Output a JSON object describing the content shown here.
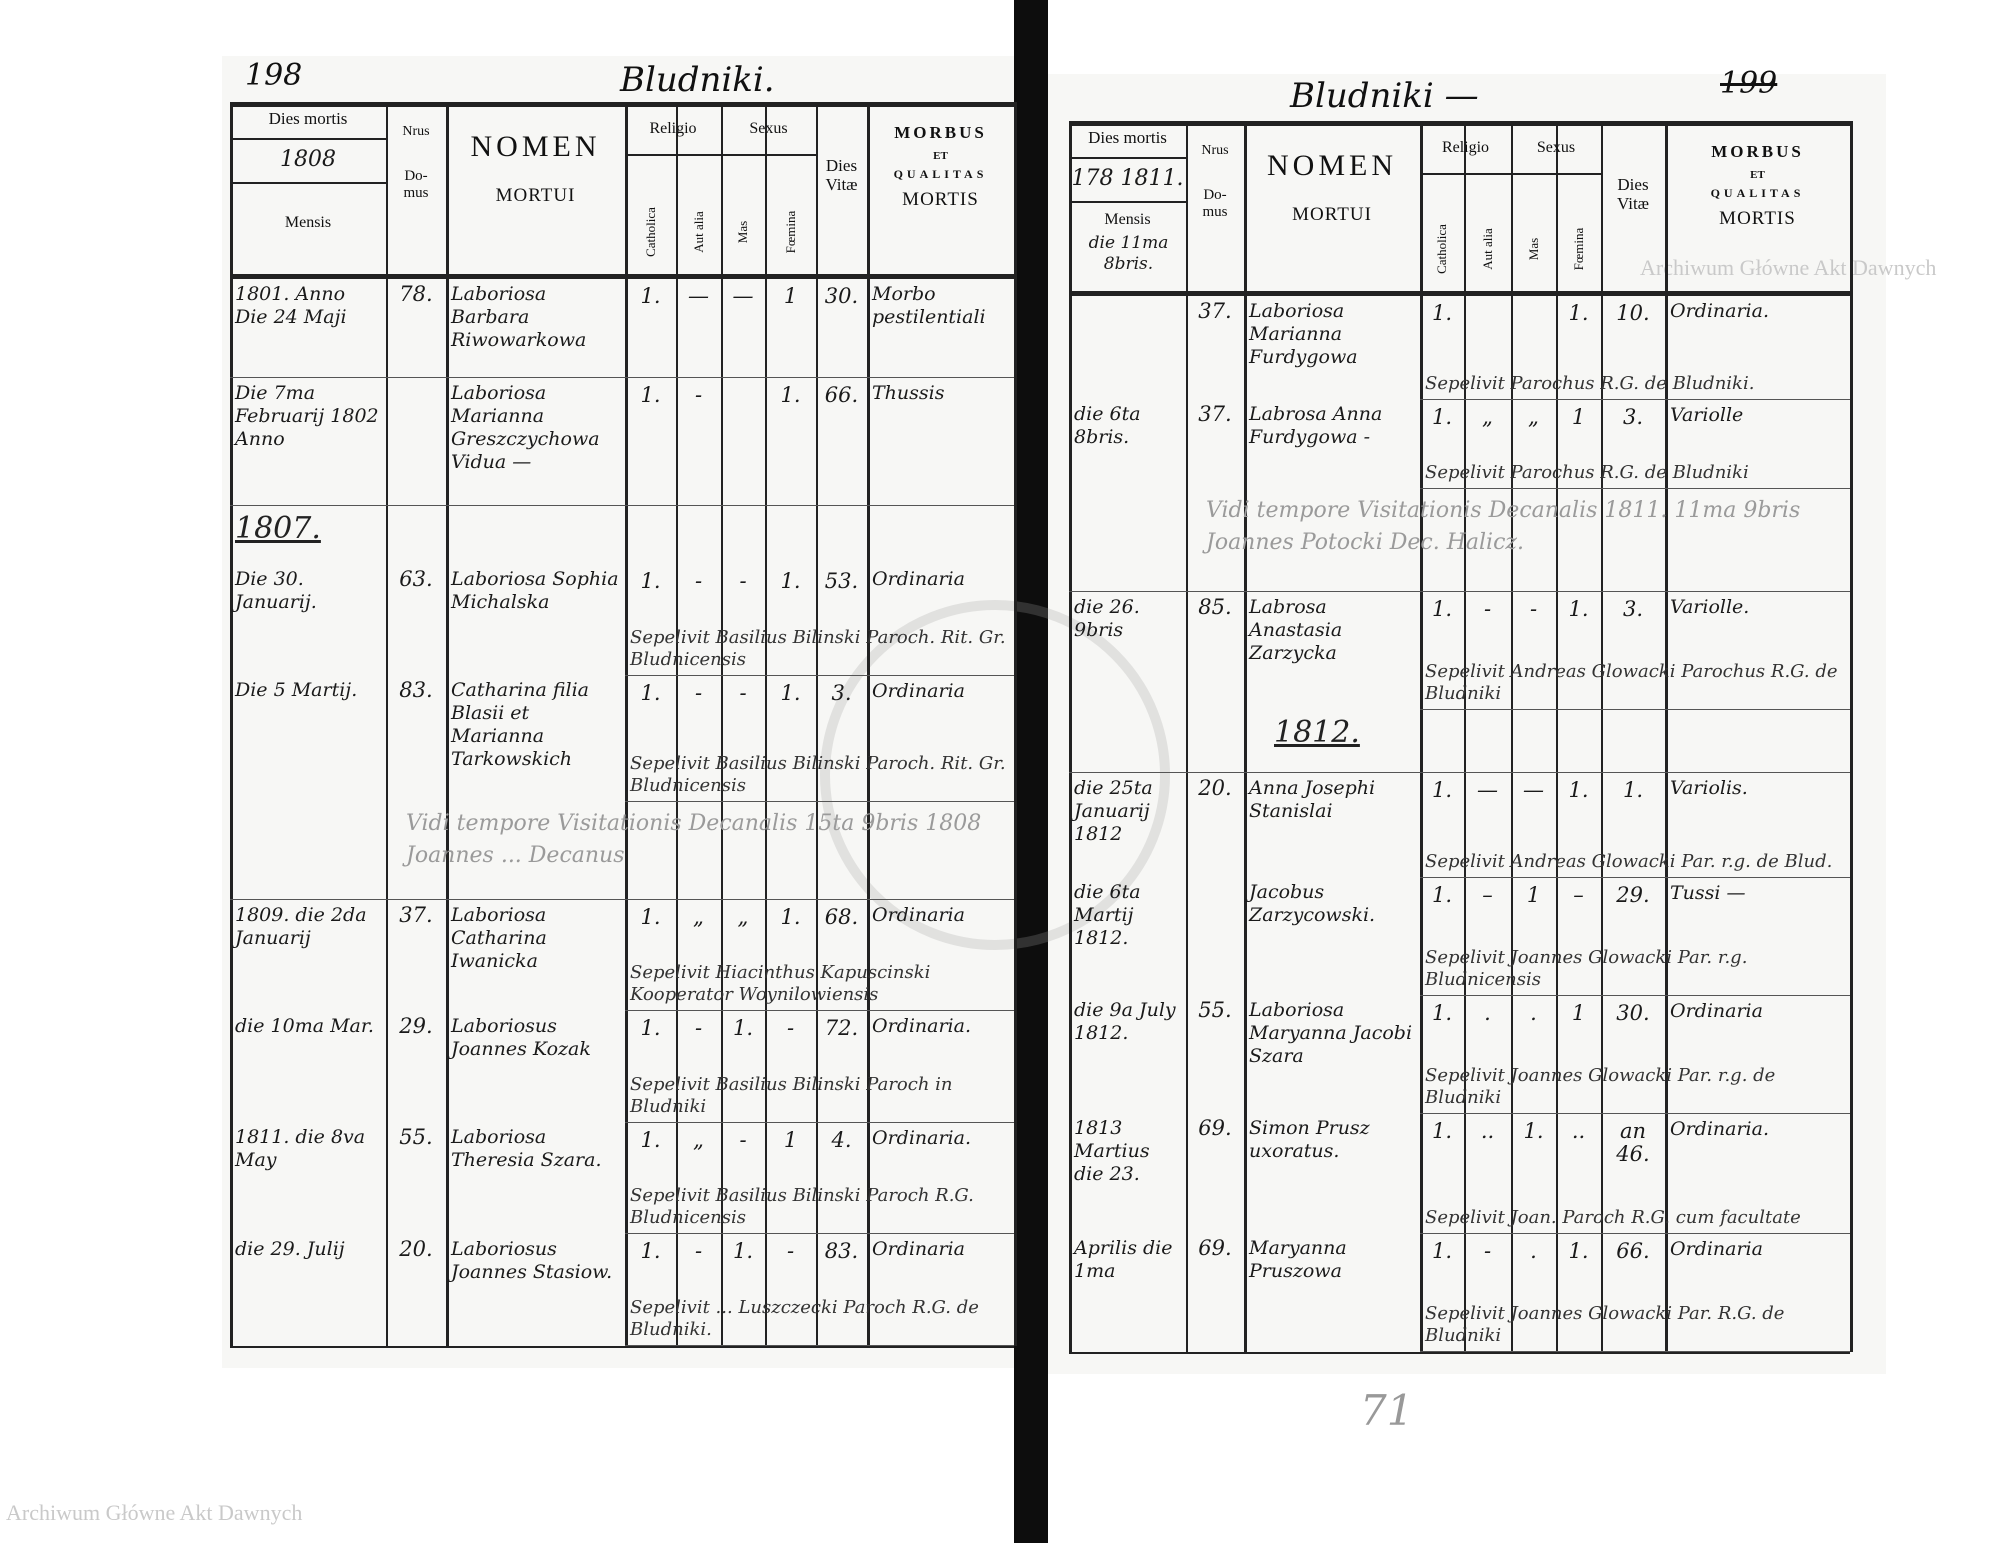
{
  "header": {
    "dies_mortis": "Dies mortis",
    "mensis": "Mensis",
    "nrus": "Nrus",
    "domus": "Do-\nmus",
    "nomen": "NOMEN",
    "mortui": "MORTUI",
    "religio": "Religio",
    "sexus": "Sexus",
    "catholica": "Catholica",
    "aut_alia": "Aut alia",
    "mas": "Mas",
    "femina": "Fœmina",
    "dies_vitae": "Dies\nVitæ",
    "morbus": "MORBUS",
    "et": "ET",
    "qualitas": "QUALITAS",
    "mortis": "MORTIS"
  },
  "left_page": {
    "page_number": "198",
    "place": "Bludniki.",
    "year": "1808",
    "rows": [
      {
        "date": "1801. Anno Die 24 Maji",
        "domus": "78.",
        "nomen": "Laboriosa Barbara Riwowarkowa",
        "catholica": "1.",
        "aut_alia": "—",
        "mas": "—",
        "femina": "1",
        "dies_vitae": "30.",
        "morbus": "Morbo pestilentiali"
      },
      {
        "date": "Die 7ma Februarij 1802 Anno",
        "domus": "",
        "nomen": "Laboriosa Marianna Greszczychowa Vidua —",
        "catholica": "1.",
        "aut_alia": "-",
        "mas": "",
        "femina": "1.",
        "dies_vitae": "66.",
        "morbus": "Thussis"
      },
      {
        "section": "1807.",
        "date": "Die 30. Januarij.",
        "domus": "63.",
        "nomen": "Laboriosa Sophia Michalska",
        "catholica": "1.",
        "aut_alia": "-",
        "mas": "-",
        "femina": "1.",
        "dies_vitae": "53.",
        "morbus": "Ordinaria",
        "note": "Sepelivit Basilius Bilinski Paroch. Rit. Gr. Bludnicensis"
      },
      {
        "date": "Die 5 Martij.",
        "domus": "83.",
        "nomen": "Catharina filia Blasii et Marianna Tarkowskich",
        "catholica": "1.",
        "aut_alia": "-",
        "mas": "-",
        "femina": "1.",
        "dies_vitae": "3.",
        "morbus": "Ordinaria",
        "note": "Sepelivit Basilius Bilinski Paroch. Rit. Gr. Bludnicensis"
      },
      {
        "visitation": "Vidi tempore Visitationis Decanalis 15ta 9bris 1808 Joannes ... Decanus"
      },
      {
        "date": "1809. die 2da Januarij",
        "domus": "37.",
        "nomen": "Laboriosa Catharina Iwanicka",
        "catholica": "1.",
        "aut_alia": "„",
        "mas": "„",
        "femina": "1.",
        "dies_vitae": "68.",
        "morbus": "Ordinaria",
        "note": "Sepelivit Hiacinthus Kapuscinski Kooperator Woynilowiensis"
      },
      {
        "date": "die 10ma Mar.",
        "domus": "29.",
        "nomen": "Laboriosus Joannes Kozak",
        "catholica": "1.",
        "aut_alia": "-",
        "mas": "1.",
        "femina": "-",
        "dies_vitae": "72.",
        "morbus": "Ordinaria.",
        "note": "Sepelivit Basilius Bilinski Paroch in Bludniki"
      },
      {
        "date": "1811. die 8va May",
        "domus": "55.",
        "nomen": "Laboriosa Theresia Szara.",
        "catholica": "1.",
        "aut_alia": "„",
        "mas": "-",
        "femina": "1",
        "dies_vitae": "4.",
        "morbus": "Ordinaria.",
        "note": "Sepelivit Basilius Bilinski Paroch R.G. Bludnicensis"
      },
      {
        "date": "die 29. Julij",
        "domus": "20.",
        "nomen": "Laboriosus Joannes Stasiow.",
        "catholica": "1.",
        "aut_alia": "-",
        "mas": "1.",
        "femina": "-",
        "dies_vitae": "83.",
        "morbus": "Ordinaria",
        "note": "Sepelivit ... Luszczecki Paroch R.G. de Bludniki."
      }
    ]
  },
  "right_page": {
    "page_number": "199",
    "place": "Bludniki —",
    "year": "178 1811.",
    "mensis_note": "die 11ma 8bris.",
    "pencil_number": "71",
    "rows": [
      {
        "date": "",
        "domus": "37.",
        "nomen": "Laboriosa Marianna Furdygowa",
        "catholica": "1.",
        "aut_alia": "",
        "mas": "",
        "femina": "1.",
        "dies_vitae": "10.",
        "morbus": "Ordinaria.",
        "note": "Sepelivit Parochus R.G. de Bludniki."
      },
      {
        "date": "die 6ta 8bris.",
        "domus": "37.",
        "nomen": "Labrosa Anna Furdygowa -",
        "catholica": "1.",
        "aut_alia": "„",
        "mas": "„",
        "femina": "1",
        "dies_vitae": "3.",
        "morbus": "Variolle",
        "note": "Sepelivit Parochus R.G. de Bludniki"
      },
      {
        "visitation": "Vidi tempore Visitationis Decanalis 1811. 11ma 9bris Joannes Potocki Dec. Halicz."
      },
      {
        "date": "die 26. 9bris",
        "domus": "85.",
        "nomen": "Labrosa Anastasia Zarzycka",
        "catholica": "1.",
        "aut_alia": "-",
        "mas": "-",
        "femina": "1.",
        "dies_vitae": "3.",
        "morbus": "Variolle.",
        "note": "Sepelivit Andreas Glowacki Parochus R.G. de Bludniki"
      },
      {
        "section": "1812."
      },
      {
        "date": "die 25ta Januarij 1812",
        "domus": "20.",
        "nomen": "Anna Josephi Stanislai",
        "catholica": "1.",
        "aut_alia": "—",
        "mas": "—",
        "femina": "1.",
        "dies_vitae": "1.",
        "morbus": "Variolis.",
        "note": "Sepelivit Andreas Glowacki Par. r.g. de Blud."
      },
      {
        "date": "die 6ta Martij 1812.",
        "domus": "",
        "nomen": "Jacobus Zarzycowski.",
        "catholica": "1.",
        "aut_alia": "–",
        "mas": "1",
        "femina": "–",
        "dies_vitae": "29.",
        "morbus": "Tussi —",
        "note": "Sepelivit Joannes Glowacki Par. r.g. Bludnicensis"
      },
      {
        "date": "die 9a July 1812.",
        "domus": "55.",
        "nomen": "Laboriosa Maryanna Jacobi Szara",
        "catholica": "1.",
        "aut_alia": ".",
        "mas": ".",
        "femina": "1",
        "dies_vitae": "30.",
        "morbus": "Ordinaria",
        "note": "Sepelivit Joannes Glowacki Par. r.g. de Bludniki"
      },
      {
        "date": "1813 Martius die 23.",
        "domus": "69.",
        "nomen": "Simon Prusz uxoratus.",
        "catholica": "1.",
        "aut_alia": "..",
        "mas": "1.",
        "femina": "..",
        "dies_vitae": "an 46.",
        "morbus": "Ordinaria.",
        "note": "Sepelivit Joan. Paroch R.G. cum facultate"
      },
      {
        "date": "Aprilis die 1ma",
        "domus": "69.",
        "nomen": "Maryanna Pruszowa",
        "catholica": "1.",
        "aut_alia": "-",
        "mas": ".",
        "femina": "1.",
        "dies_vitae": "66.",
        "morbus": "Ordinaria",
        "note": "Sepelivit Joannes Glowacki Par. R.G. de Bludniki"
      }
    ]
  },
  "watermark": "Archiwum Główne Akt Dawnych",
  "colors": {
    "ink": "#111111",
    "paper": "#f7f7f5",
    "gutter": "#0d0d0d",
    "watermark": "#c9c9c9"
  }
}
